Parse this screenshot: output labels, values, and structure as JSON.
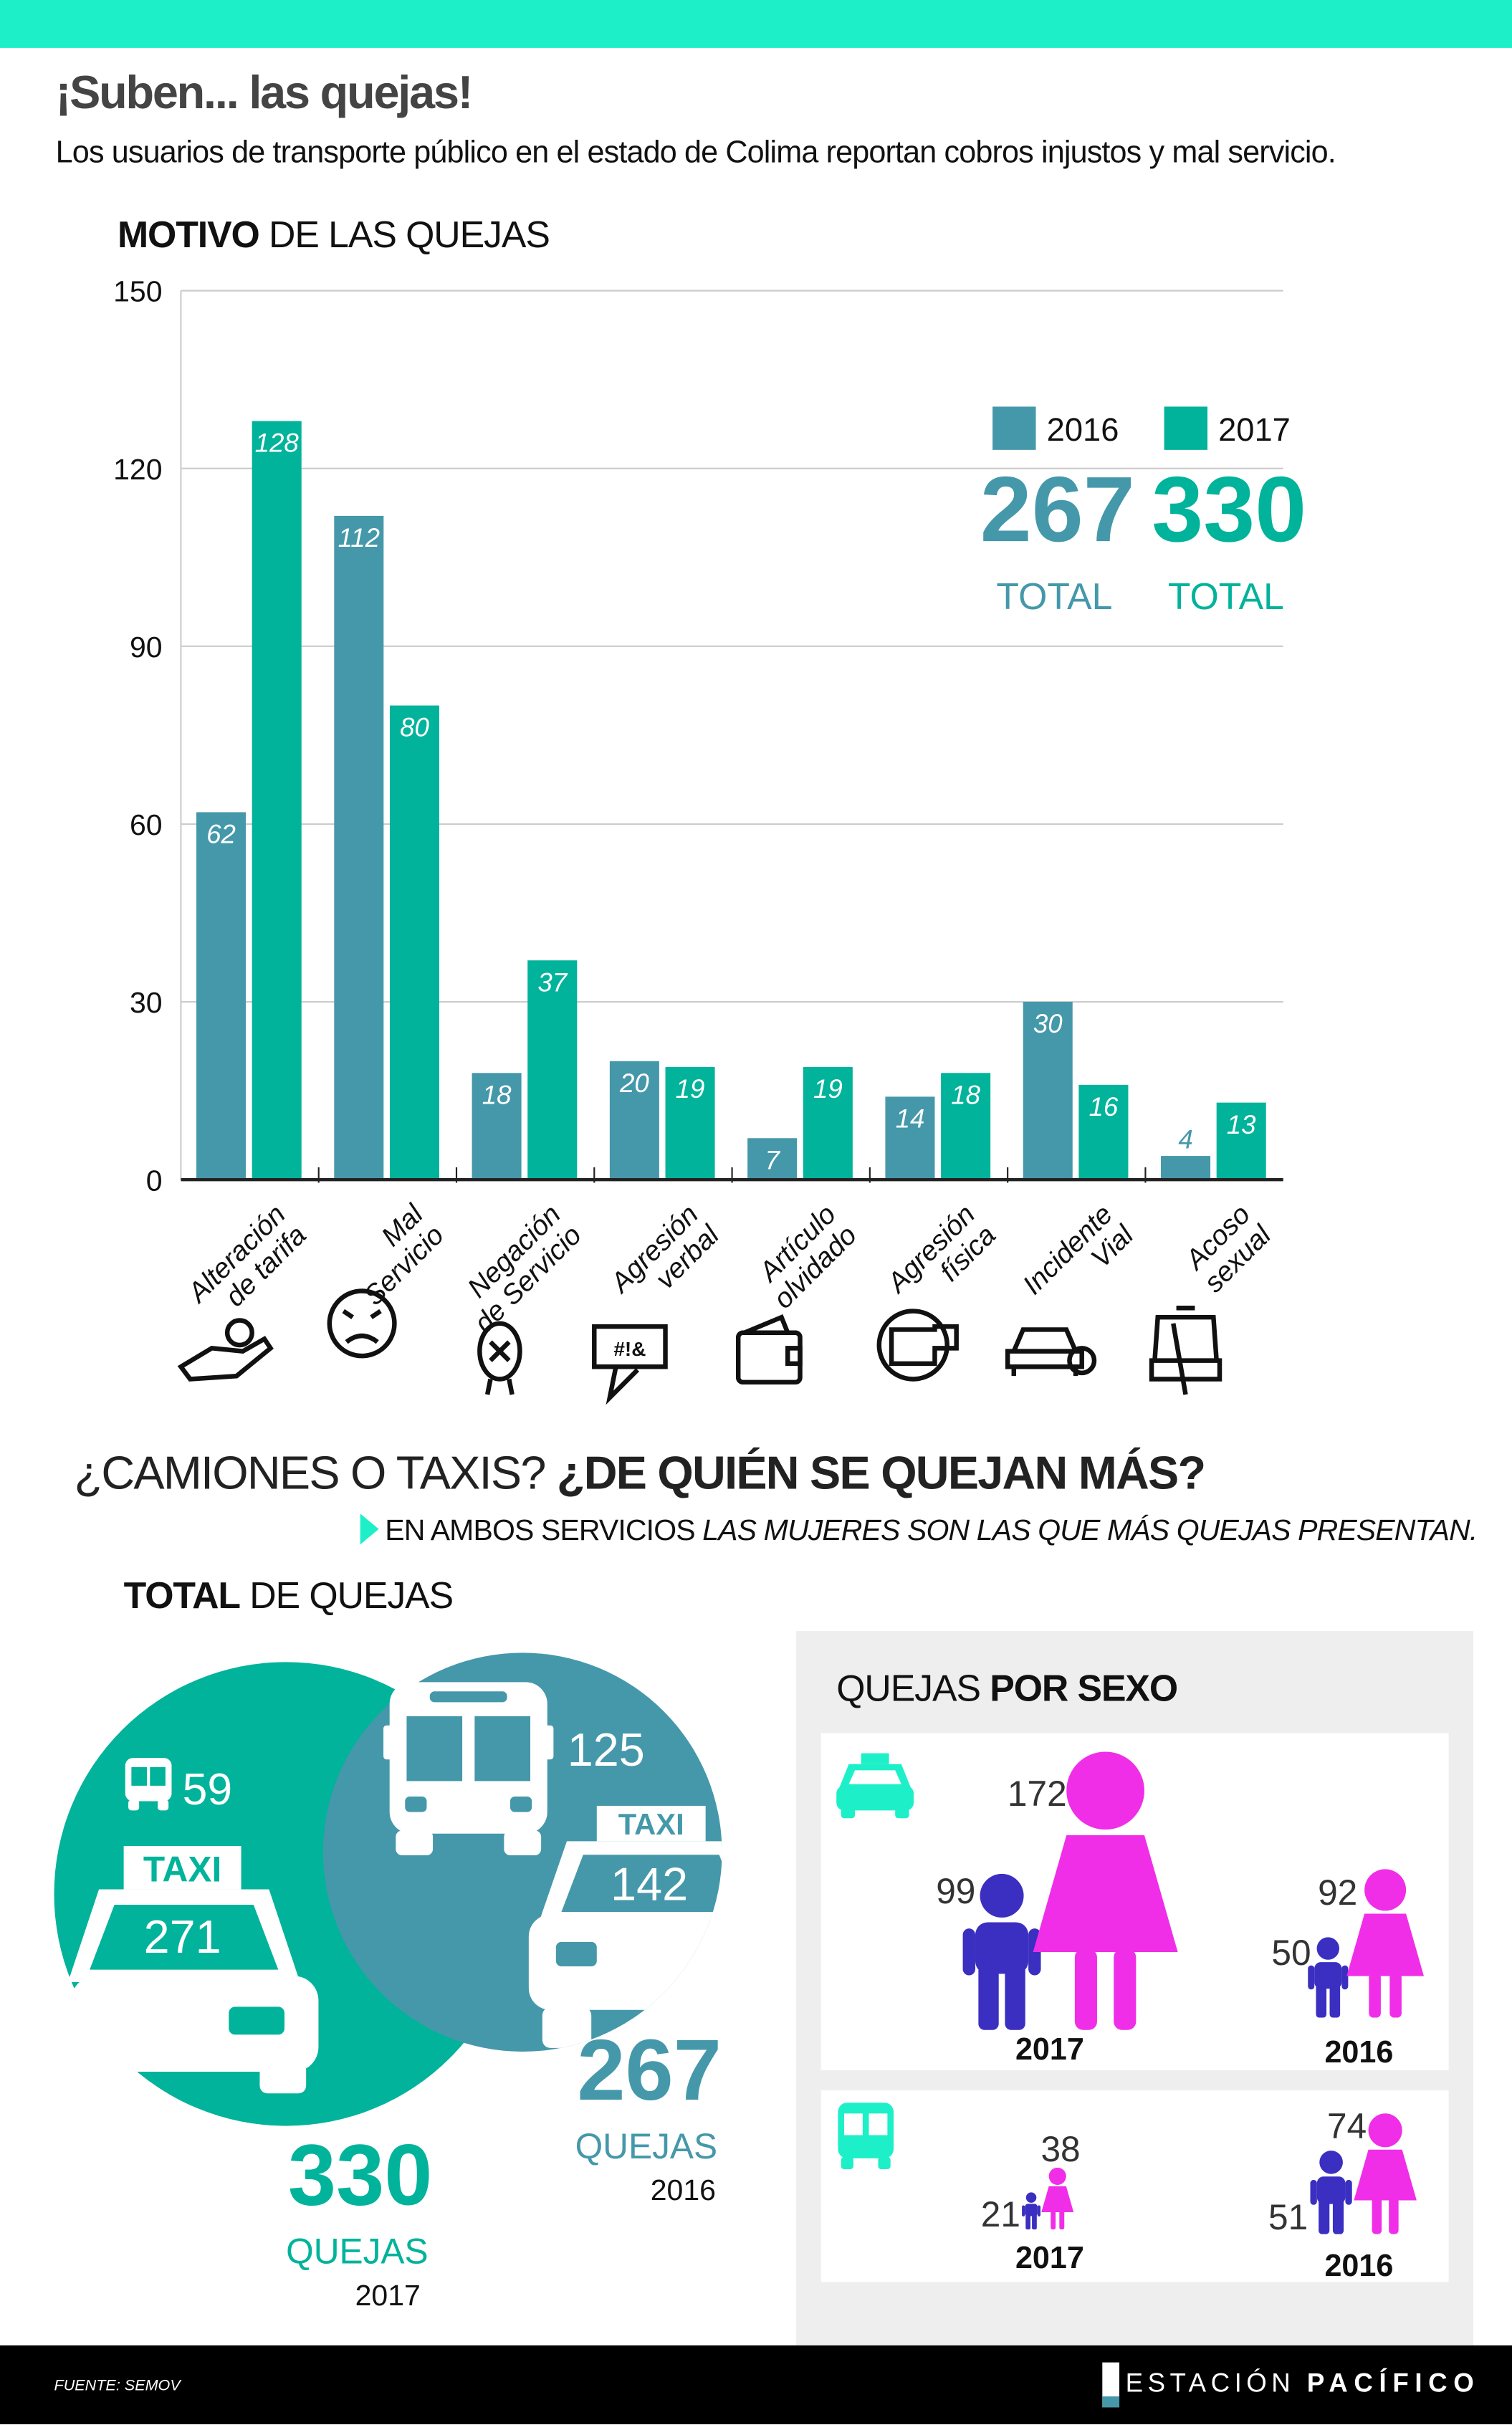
{
  "header": {
    "title": "¡Suben... las quejas!",
    "subtitle": "Los usuarios de transporte público en el estado de Colima reportan cobros injustos y mal servicio."
  },
  "colors": {
    "accent_bar": "#1df0c8",
    "y2016": "#4598aa",
    "y2017": "#00b39a",
    "women": "#f02ee8",
    "men": "#3a2fc0",
    "panel": "#eeeeee"
  },
  "chart_data": {
    "type": "bar",
    "title_bold": "MOTIVO",
    "title_rest": " DE LAS QUEJAS",
    "categories": [
      [
        "Alteración",
        "de tarifa"
      ],
      [
        "Mal",
        "Servicio"
      ],
      [
        "Negación",
        "de Servicio"
      ],
      [
        "Agresión",
        "verbal"
      ],
      [
        "Artículo",
        "olvidado"
      ],
      [
        "Agresión",
        "física"
      ],
      [
        "Incidente",
        "Vial"
      ],
      [
        "Acoso",
        "sexual"
      ]
    ],
    "category_icons": [
      "hand-coin-icon",
      "angry-face-icon",
      "denied-person-icon",
      "swear-bubble-icon",
      "wallet-icon",
      "fist-icon",
      "car-crash-icon",
      "harassment-bus-icon"
    ],
    "series": [
      {
        "name": "2016",
        "values": [
          62,
          112,
          18,
          20,
          7,
          14,
          30,
          4
        ]
      },
      {
        "name": "2017",
        "values": [
          128,
          80,
          37,
          19,
          19,
          18,
          16,
          13
        ]
      }
    ],
    "ylim": [
      0,
      150
    ],
    "yticks": [
      0,
      30,
      60,
      90,
      120,
      150
    ],
    "grid": true,
    "legend": "top-right",
    "totals": [
      {
        "value": "267",
        "label": "TOTAL"
      },
      {
        "value": "330",
        "label": "TOTAL"
      }
    ]
  },
  "section2": {
    "title_light": "¿CAMIONES O TAXIS? ",
    "title_bold": "¿DE QUIÉN SE QUEJAN MÁS?",
    "sub_light": "EN AMBOS SERVICIOS ",
    "sub_italic": "LAS MUJERES SON LAS QUE MÁS QUEJAS PRESENTAN.",
    "totals_title_bold": "TOTAL",
    "totals_title_rest": " DE QUEJAS",
    "taxi_sign": "TAXI",
    "y2017": {
      "bus": "59",
      "taxi": "271",
      "total": "330",
      "label": "QUEJAS",
      "year": "2017"
    },
    "y2016": {
      "bus": "125",
      "taxi": "142",
      "total": "267",
      "label": "QUEJAS",
      "year": "2016"
    }
  },
  "by_sex": {
    "title_light": "QUEJAS ",
    "title_bold": "POR SEXO",
    "taxi": {
      "y2017": {
        "year": "2017",
        "women": "172",
        "men": "99"
      },
      "y2016": {
        "year": "2016",
        "women": "92",
        "men": "50"
      }
    },
    "bus": {
      "y2017": {
        "year": "2017",
        "women": "38",
        "men": "21"
      },
      "y2016": {
        "year": "2016",
        "women": "74",
        "men": "51"
      }
    }
  },
  "footer": {
    "source": "FUENTE: SEMOV",
    "logo_light": "ESTACIÓN",
    "logo_bold": "PACÍFICO"
  }
}
